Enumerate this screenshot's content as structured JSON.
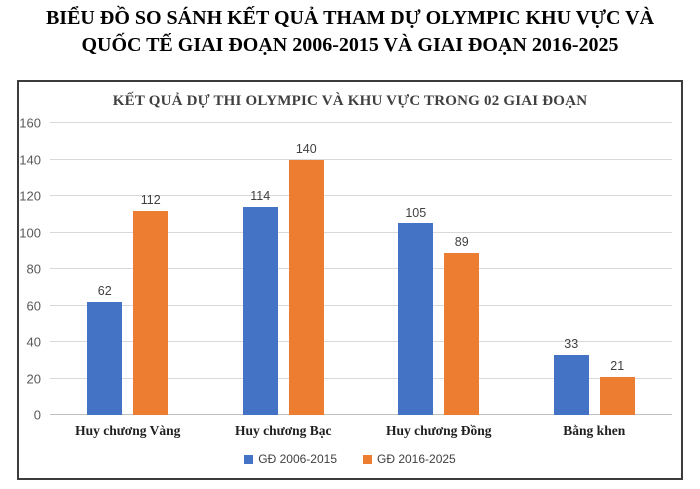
{
  "page_title": {
    "line1": "BIỂU ĐỒ SO SÁNH KẾT QUẢ THAM DỰ OLYMPIC KHU VỰC VÀ",
    "line2": "QUỐC TẾ GIAI ĐOẠN 2006-2015 VÀ GIAI ĐOẠN 2016-2025"
  },
  "chart_data": {
    "type": "bar",
    "title": "KẾT QUẢ DỰ THI OLYMPIC VÀ KHU VỰC TRONG 02 GIAI ĐOẠN",
    "categories": [
      "Huy chương Vàng",
      "Huy chương Bạc",
      "Huy chương Đồng",
      "Bằng khen"
    ],
    "series": [
      {
        "name": "GĐ 2006-2015",
        "color": "#4472C4",
        "values": [
          62,
          114,
          105,
          33
        ]
      },
      {
        "name": "GĐ 2016-2025",
        "color": "#ED7D31",
        "values": [
          112,
          140,
          89,
          21
        ]
      }
    ],
    "ylim": [
      0,
      160
    ],
    "ytick_step": 20,
    "grid": true,
    "data_labels": true,
    "legend_position": "bottom"
  }
}
